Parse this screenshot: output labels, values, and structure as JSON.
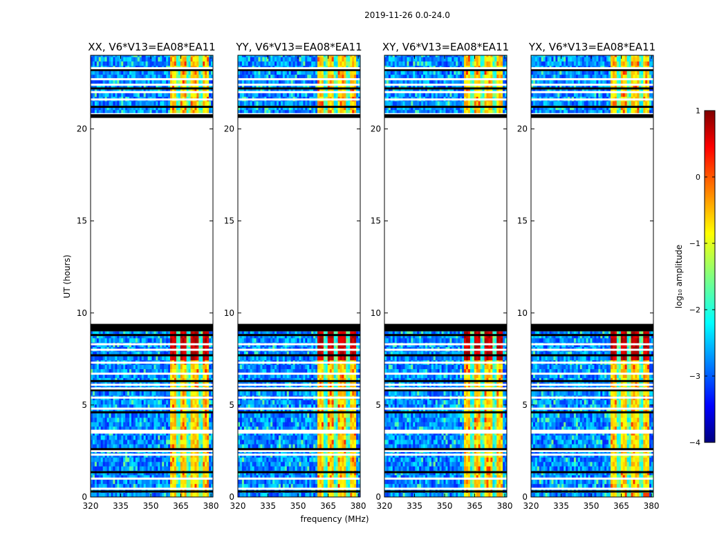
{
  "figure": {
    "suptitle": "2019-11-26 0.0-24.0",
    "xlabel": "frequency (MHz)",
    "ylabel": "UT (hours)"
  },
  "chart_data": {
    "type": "heatmap",
    "xlim": [
      320,
      381
    ],
    "ylim": [
      0,
      24
    ],
    "xticks": [
      320,
      335,
      350,
      365,
      380
    ],
    "yticks": [
      0,
      5,
      10,
      15,
      20
    ],
    "panels": [
      {
        "title": "XX, V6*V13=EA08*EA11"
      },
      {
        "title": "YY, V6*V13=EA08*EA11"
      },
      {
        "title": "XY, V6*V13=EA08*EA11"
      },
      {
        "title": "YX, V6*V13=EA08*EA11"
      }
    ],
    "time_blocks_hours": [
      [
        0,
        9.0
      ],
      [
        20.8,
        24.0
      ]
    ],
    "no_data_gap_hours": [
      9.4,
      20.6
    ],
    "flag_lines_hours": [
      0.3,
      0.45,
      1.0,
      1.35,
      2.3,
      2.5,
      2.6,
      3.5,
      3.6,
      4.6,
      4.8,
      5.4,
      5.8,
      5.9,
      6.1,
      6.3,
      6.7,
      7.3,
      7.7,
      8.0,
      8.3,
      8.8,
      9.1,
      9.25,
      9.35,
      20.7,
      20.8,
      21.2,
      21.6,
      22.0,
      22.2,
      22.4,
      22.7,
      23.2,
      23.3
    ],
    "rfi_band_mhz": [
      360,
      379
    ],
    "rfi_channels_mhz": [
      364,
      369,
      375
    ],
    "strong_rfi_hours": [
      7.5,
      9.0
    ],
    "colorbar": {
      "label": "log₁₀ amplitude",
      "range": [
        -4,
        1
      ],
      "ticks": [
        "1",
        "0",
        "−1",
        "−2",
        "−3",
        "−4"
      ],
      "colormap": "jet"
    }
  }
}
